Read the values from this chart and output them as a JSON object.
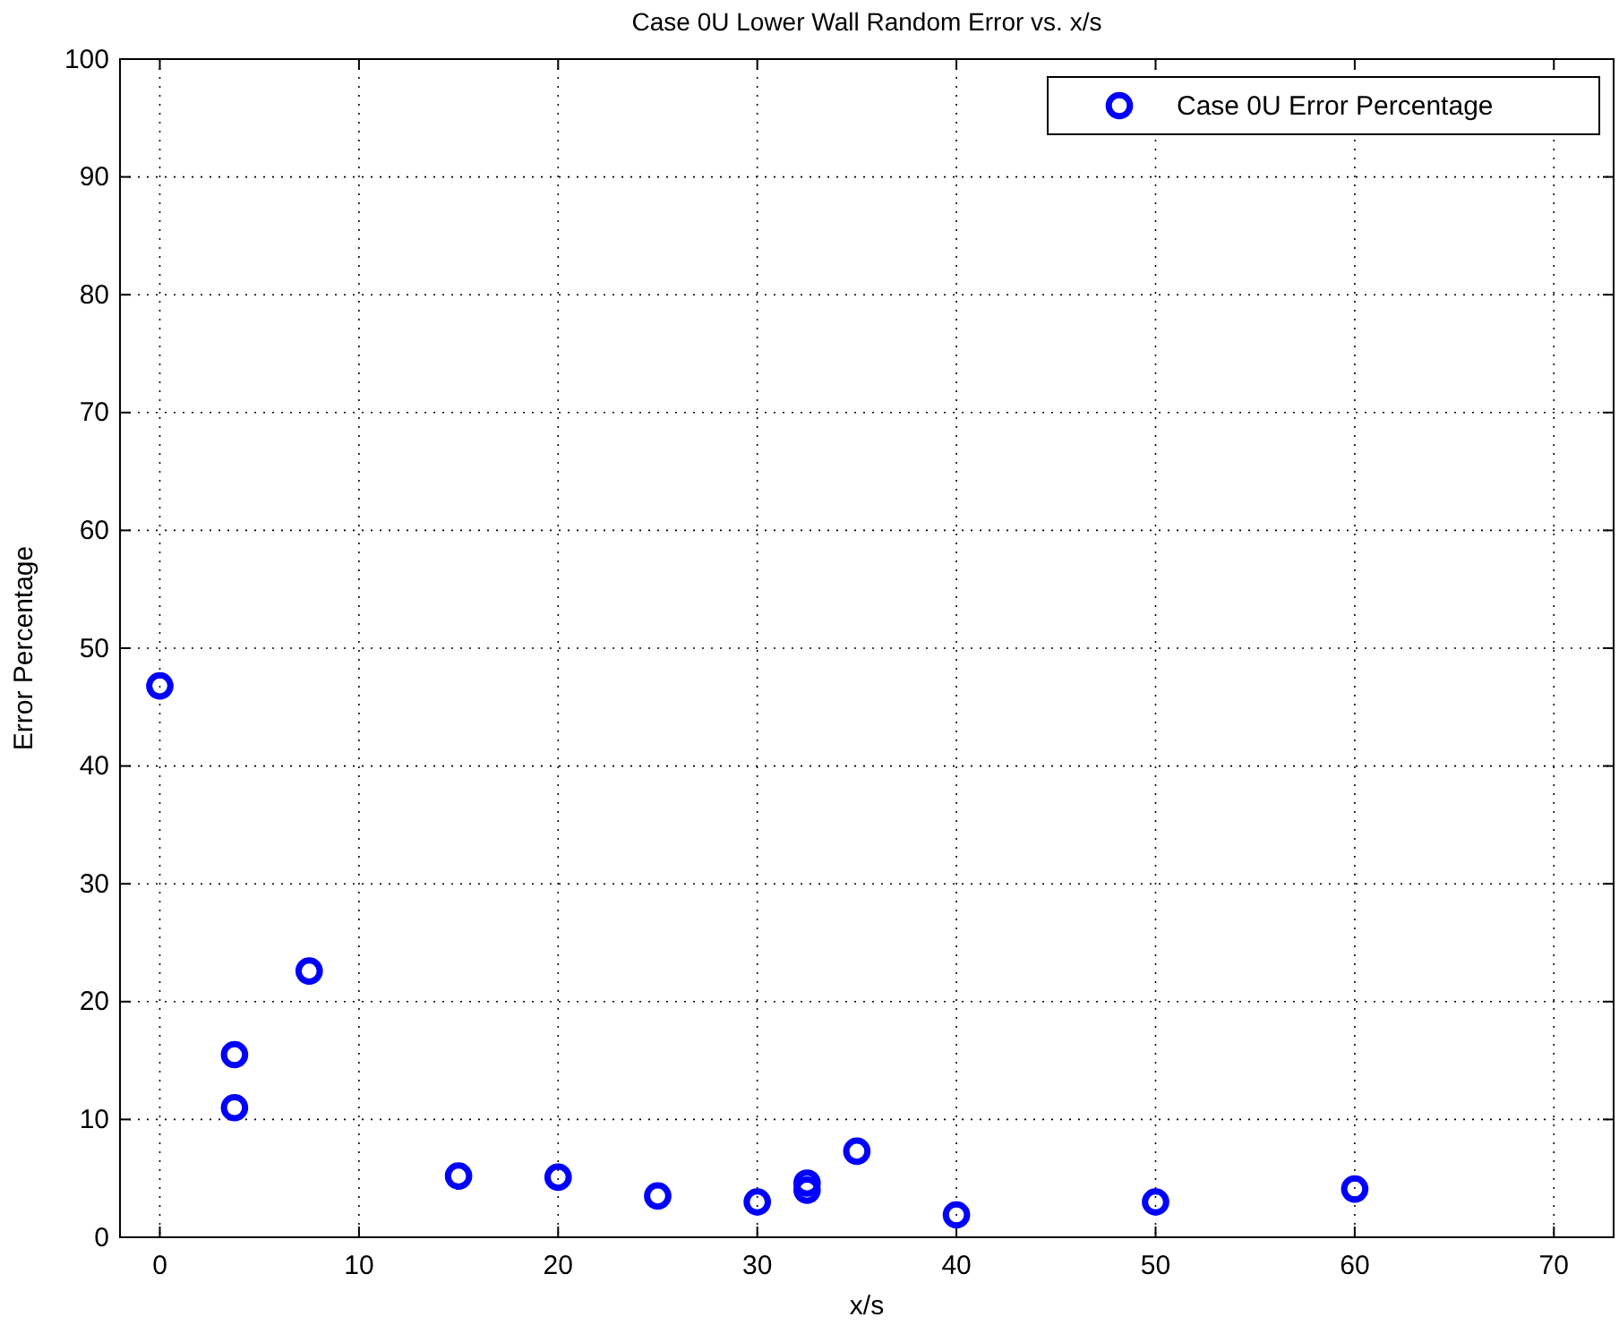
{
  "chart_data": {
    "type": "scatter",
    "title": "Case 0U Lower Wall Random Error vs. x/s",
    "xlabel": "x/s",
    "ylabel": "Error Percentage",
    "x": [
      0,
      3.75,
      3.75,
      7.5,
      15,
      20,
      25,
      30,
      32.5,
      32.5,
      35,
      40,
      50,
      60
    ],
    "series": [
      {
        "name": "Case 0U Error Percentage",
        "color": "#0000ff",
        "values": [
          46.8,
          15.5,
          11.0,
          22.6,
          5.2,
          5.1,
          3.5,
          3.0,
          4.6,
          4.0,
          7.3,
          1.9,
          3.0,
          4.1
        ]
      }
    ],
    "xlim": [
      -2,
      73
    ],
    "xticks": [
      0,
      10,
      20,
      30,
      40,
      50,
      60,
      70
    ],
    "ylim": [
      0,
      100
    ],
    "yticks": [
      0,
      10,
      20,
      30,
      40,
      50,
      60,
      70,
      80,
      90,
      100
    ],
    "grid": true,
    "legend": "top right",
    "marker": "circle"
  }
}
